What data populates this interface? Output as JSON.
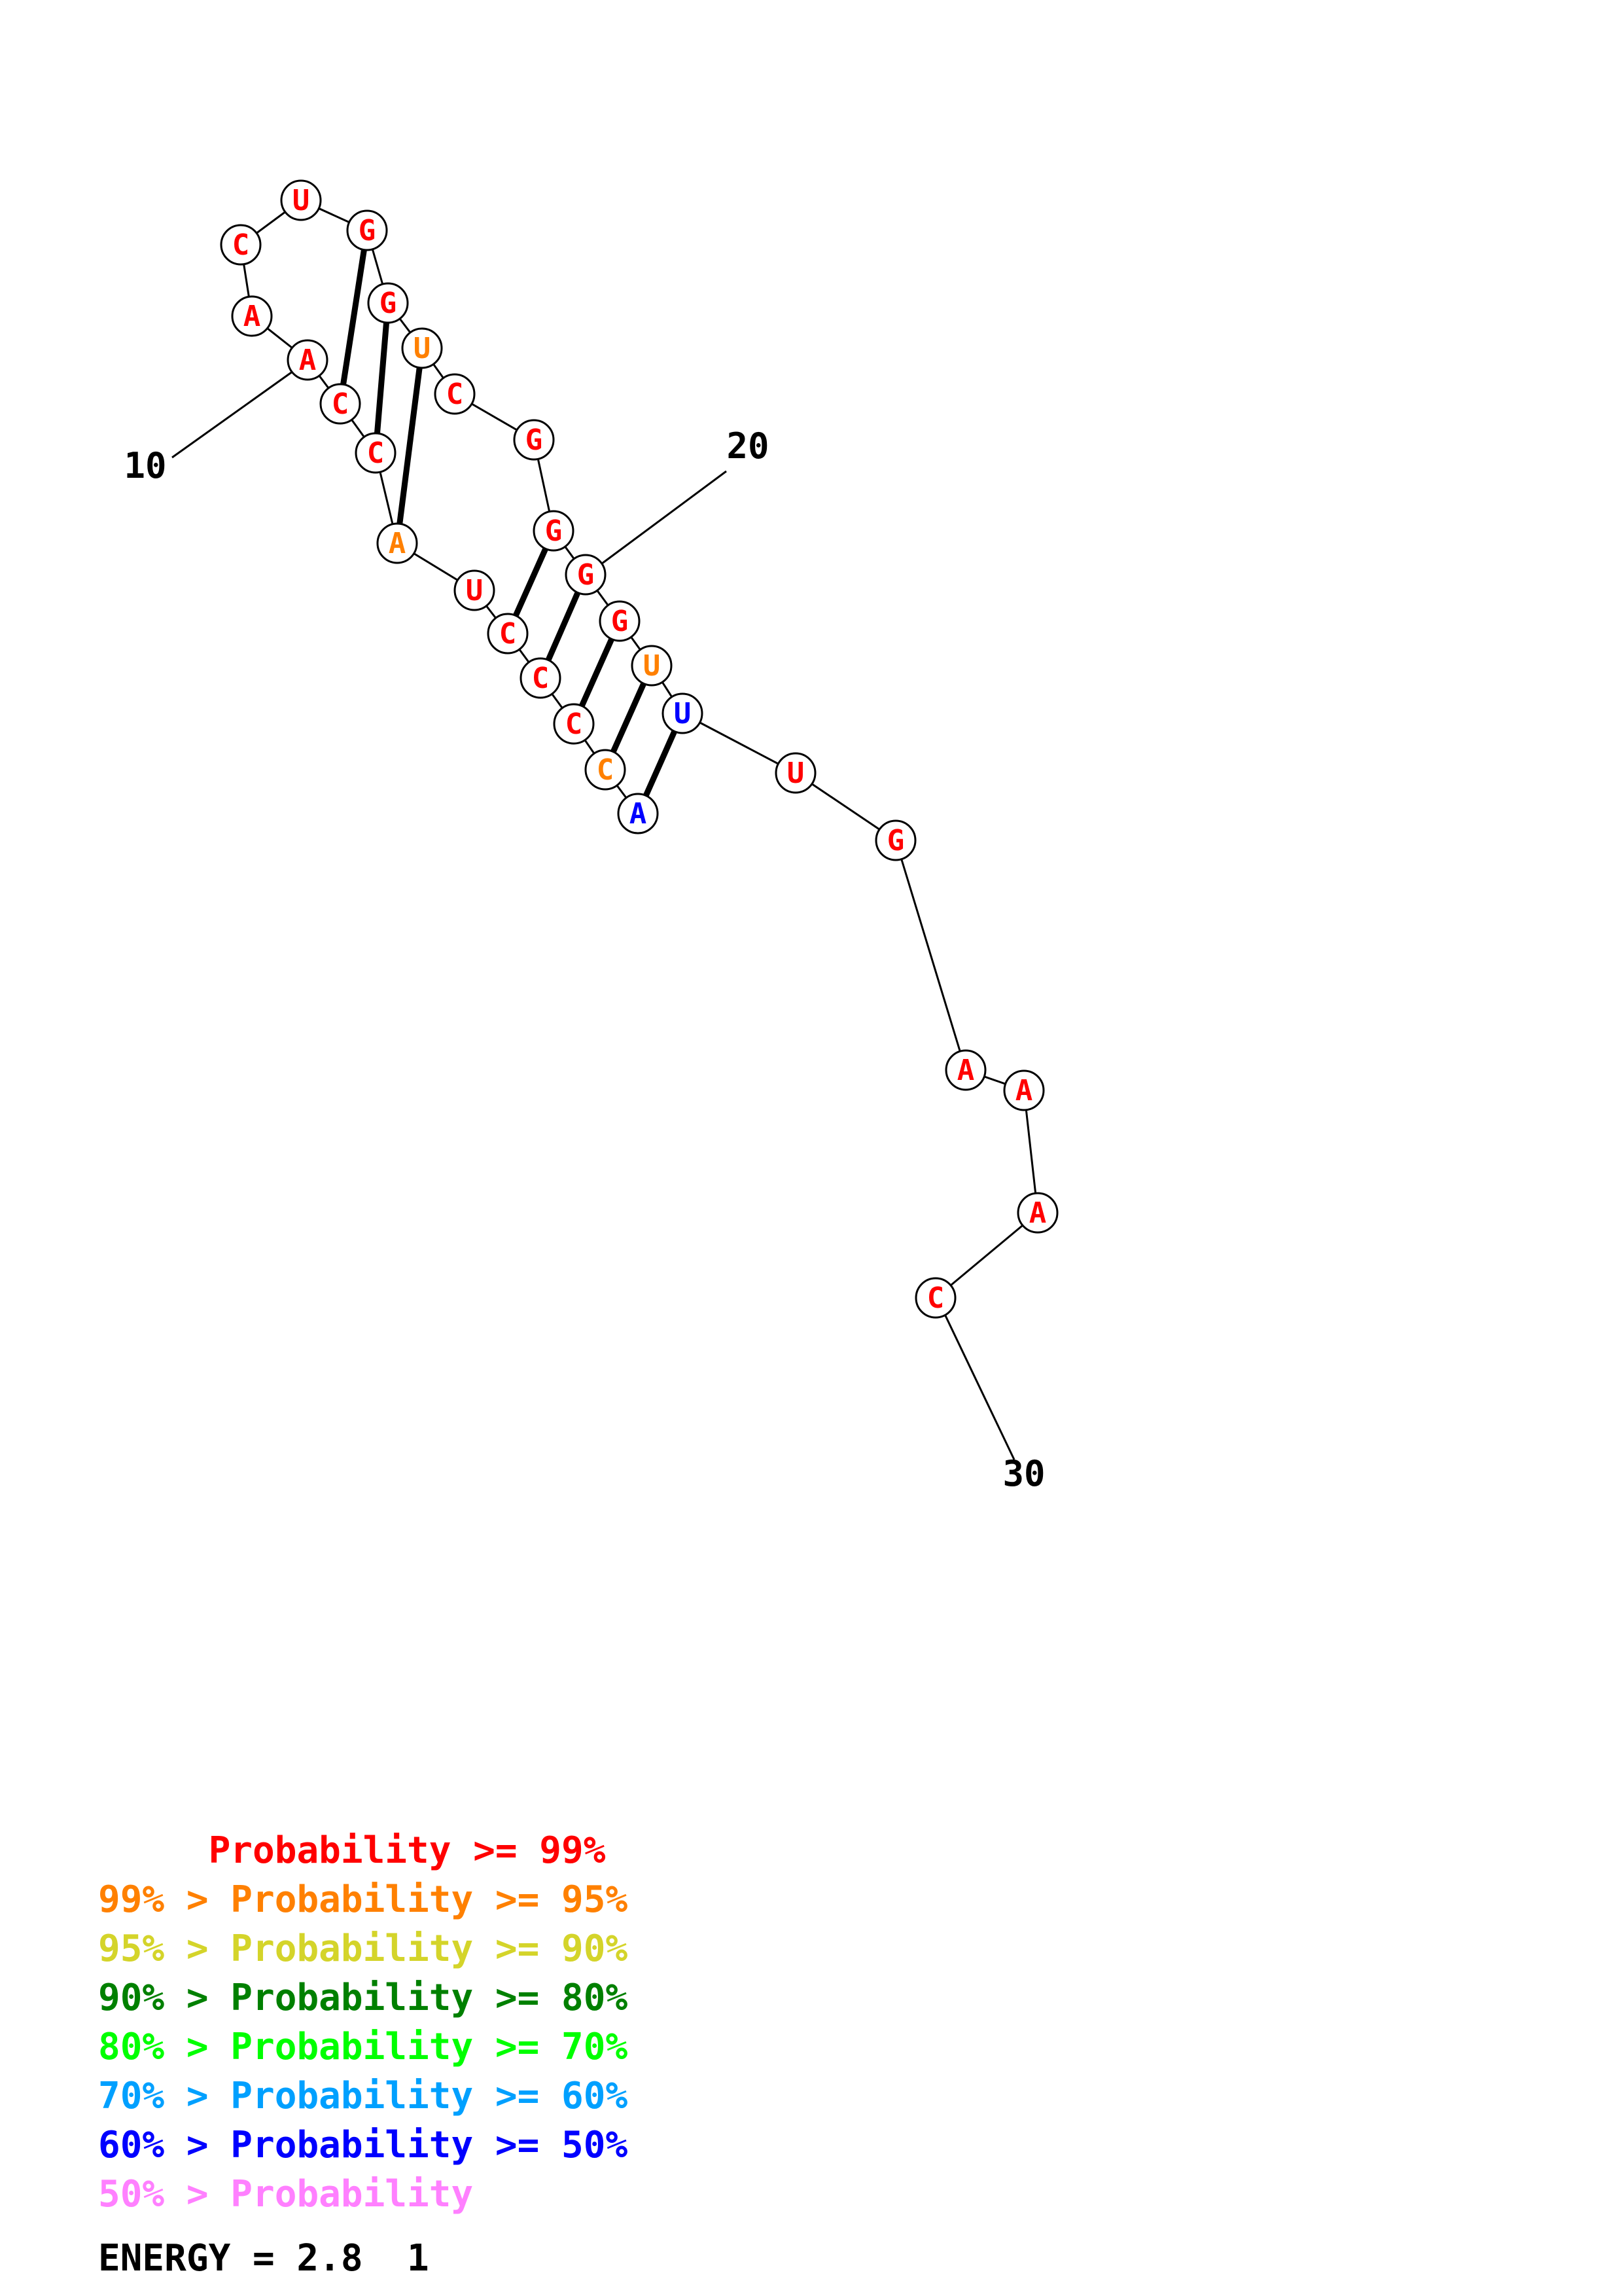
{
  "structure": {
    "sequence": [
      "A",
      "C",
      "C",
      "C",
      "C",
      "U",
      "A",
      "C",
      "C",
      "A",
      "A",
      "C",
      "U",
      "G",
      "G",
      "U",
      "C",
      "G",
      "G",
      "G",
      "G",
      "U",
      "U",
      "U",
      "G",
      "A",
      "A",
      "A",
      "C"
    ],
    "nucleotide_colors": [
      "#0000ff",
      "#ff8000",
      "#ff0000",
      "#ff0000",
      "#ff0000",
      "#ff0000",
      "#ff8000",
      "#ff0000",
      "#ff0000",
      "#ff0000",
      "#ff0000",
      "#ff0000",
      "#ff0000",
      "#ff0000",
      "#ff0000",
      "#ff8000",
      "#ff0000",
      "#ff0000",
      "#ff0000",
      "#ff0000",
      "#ff0000",
      "#ff8000",
      "#0000ff",
      "#ff0000",
      "#ff0000",
      "#ff0000",
      "#ff0000",
      "#ff0000",
      "#ff0000"
    ],
    "base_pairs": [
      [
        1,
        23
      ],
      [
        2,
        22
      ],
      [
        3,
        21
      ],
      [
        4,
        20
      ],
      [
        5,
        19
      ],
      [
        7,
        16
      ],
      [
        8,
        15
      ],
      [
        9,
        14
      ]
    ],
    "position_labels": [
      {
        "index": 10,
        "text": "10"
      },
      {
        "index": 20,
        "text": "20"
      },
      {
        "index": 30,
        "text": "30"
      }
    ]
  },
  "legend": [
    {
      "prefix": "     ",
      "text": "Probability >= 99%",
      "color": "#ff0000"
    },
    {
      "prefix": "99% > ",
      "text": "Probability >= 95%",
      "color": "#ff8000"
    },
    {
      "prefix": "95% > ",
      "text": "Probability >= 90%",
      "color": "#d4d42a"
    },
    {
      "prefix": "90% > ",
      "text": "Probability >= 80%",
      "color": "#008000"
    },
    {
      "prefix": "80% > ",
      "text": "Probability >= 70%",
      "color": "#00ff00"
    },
    {
      "prefix": "70% > ",
      "text": "Probability >= 60%",
      "color": "#00a0ff"
    },
    {
      "prefix": "60% > ",
      "text": "Probability >= 50%",
      "color": "#0000ff"
    },
    {
      "prefix": "50% > ",
      "text": "Probability",
      "color": "#ff80ff"
    }
  ],
  "energy": {
    "text": "ENERGY = 2.8  1"
  }
}
